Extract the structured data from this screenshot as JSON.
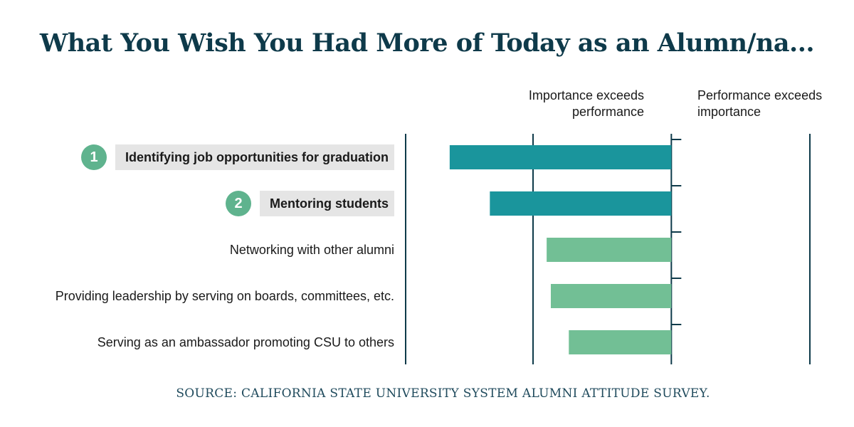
{
  "title": "What You Wish You Had More of Today as an Alumn/na...",
  "legend": {
    "left_label": "Importance exceeds performance",
    "right_label": "Performance exceeds importance"
  },
  "source": "SOURCE: CALIFORNIA STATE UNIVERSITY SYSTEM ALUMNI ATTITUDE SURVEY.",
  "colors": {
    "highlight_bar": "#1a959c",
    "regular_bar": "#72bf95",
    "axis": "#0e3a4a",
    "rank_badge": "#5fb38e"
  },
  "chart_data": {
    "type": "bar",
    "orientation": "horizontal",
    "categories": [
      "Identifying job opportunities for graduation",
      "Mentoring students",
      "Networking with other alumni",
      "Providing leadership by serving on boards, committees, etc.",
      "Serving as an ambassador promoting CSU to others"
    ],
    "ranks": [
      "1",
      "2",
      "",
      "",
      ""
    ],
    "highlighted": [
      true,
      true,
      false,
      false,
      false
    ],
    "values": [
      -1.6,
      -1.31,
      -0.9,
      -0.87,
      -0.74
    ],
    "xlim": [
      -2,
      1
    ],
    "grid": false,
    "x_ticks_shown": false
  }
}
